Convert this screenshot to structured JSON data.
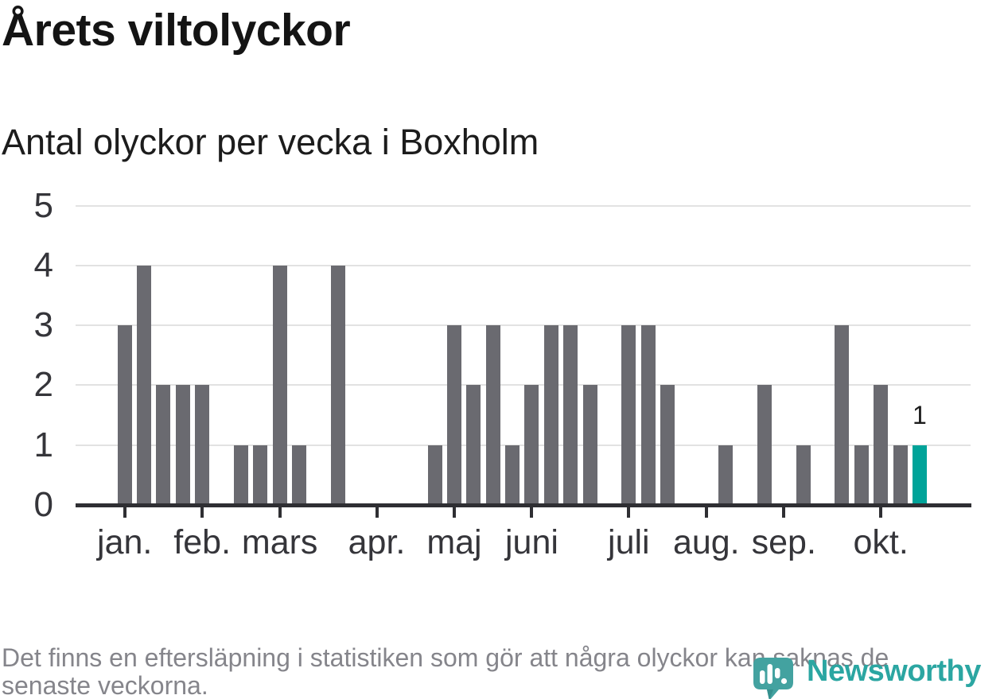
{
  "header": {
    "title": "Årets viltolyckor",
    "subtitle": "Antal olyckor per vecka i Boxholm"
  },
  "chart_data": {
    "type": "bar",
    "title": "Årets viltolyckor",
    "subtitle": "Antal olyckor per vecka i Boxholm",
    "x_description": "veckor 1-42",
    "values": [
      3,
      4,
      2,
      2,
      2,
      0,
      1,
      1,
      4,
      1,
      0,
      4,
      0,
      0,
      0,
      0,
      1,
      3,
      2,
      3,
      1,
      2,
      3,
      3,
      2,
      0,
      3,
      3,
      2,
      0,
      0,
      1,
      0,
      2,
      0,
      1,
      0,
      3,
      1,
      2,
      1,
      1
    ],
    "months": [
      {
        "label": "jan.",
        "week": 1
      },
      {
        "label": "feb.",
        "week": 5
      },
      {
        "label": "mars",
        "week": 9
      },
      {
        "label": "apr.",
        "week": 14
      },
      {
        "label": "maj",
        "week": 18
      },
      {
        "label": "juni",
        "week": 22
      },
      {
        "label": "juli",
        "week": 27
      },
      {
        "label": "aug.",
        "week": 31
      },
      {
        "label": "sep.",
        "week": 35
      },
      {
        "label": "okt.",
        "week": 40
      }
    ],
    "y_ticks": [
      0,
      1,
      2,
      3,
      4,
      5
    ],
    "ylim": [
      0,
      5
    ],
    "grid": true,
    "legend": "none",
    "highlight": {
      "index": 41,
      "label": "1"
    },
    "colors": {
      "bar": "#6a6a70",
      "highlight": "#00a399",
      "axis": "#2f2f33",
      "grid": "#e2e2e2",
      "tick_label": "#35353a",
      "annotation": "#1b1b1b"
    }
  },
  "footer": {
    "note_line1": "Det finns en eftersläpning i statistiken som gör att några olyckor kan saknas de",
    "note_line2": "senaste veckorna.",
    "brand": "Newsworthy"
  },
  "icons": {
    "brand_icon": "newsworthy-speech-bubble-bar-chart"
  }
}
